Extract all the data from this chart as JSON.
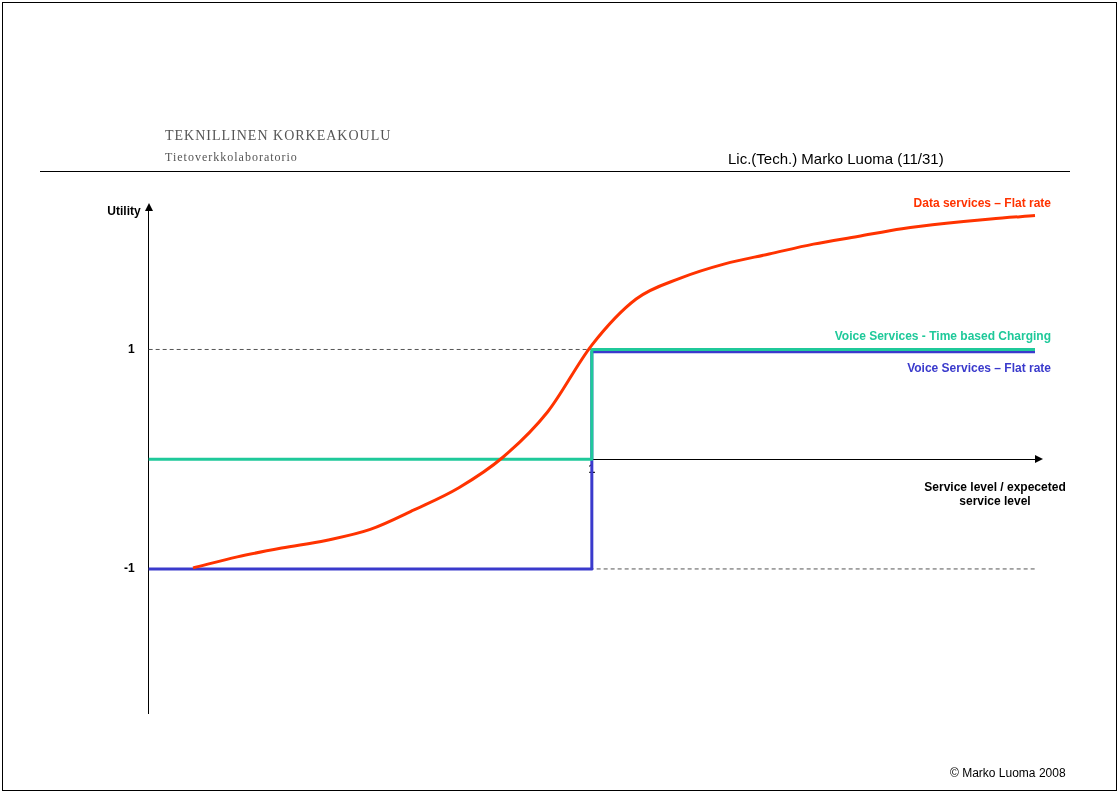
{
  "chart_data": {
    "type": "line",
    "xlabel": "Service level / expeceted service level",
    "ylabel": "Utility",
    "categories": [
      null,
      null,
      null,
      null,
      null,
      null,
      null,
      null,
      null,
      null,
      "1",
      null,
      null,
      null,
      null,
      null,
      null,
      null,
      null,
      null,
      null
    ],
    "ylim": [
      -2.32,
      2.26
    ],
    "yticks": [
      -1,
      1
    ],
    "grid": false,
    "legend": false,
    "marker": "none",
    "ref_lines": [
      {
        "axis": "y",
        "value": 1,
        "line_style": "dashed",
        "color": "#555555"
      },
      {
        "axis": "y",
        "value": -1,
        "line_style": "dashed",
        "color": "#555555"
      }
    ],
    "series": [
      {
        "name": "Data services – Flat rate",
        "color": "#ff3300",
        "values": [
          null,
          -0.99,
          -0.89,
          -0.81,
          -0.74,
          -0.64,
          -0.46,
          -0.26,
          0.02,
          0.43,
          1.04,
          1.46,
          1.65,
          1.78,
          1.87,
          1.96,
          2.03,
          2.1,
          2.15,
          2.19,
          2.22
        ]
      },
      {
        "name": "Voice Services - Time based Charging",
        "color": "#1fc99a",
        "type": "step",
        "values": [
          0,
          0,
          0,
          0,
          0,
          0,
          0,
          0,
          0,
          0,
          1,
          1,
          1,
          1,
          1,
          1,
          1,
          1,
          1,
          1,
          1
        ]
      },
      {
        "name": "Voice Services – Flat rate",
        "color": "#3a3acc",
        "type": "step",
        "values": [
          -1,
          -1,
          -1,
          -1,
          -1,
          -1,
          -1,
          -1,
          -1,
          -1,
          0.98,
          0.98,
          0.98,
          0.98,
          0.98,
          0.98,
          0.98,
          0.98,
          0.98,
          0.98,
          0.98
        ]
      }
    ],
    "annotations": [
      "TEKNILLINEN KORKEAKOULU",
      "Tietoverkkolaboratorio",
      "Lic.(Tech.) Marko Luoma (11/31)",
      "© Marko Luoma 2008"
    ]
  }
}
